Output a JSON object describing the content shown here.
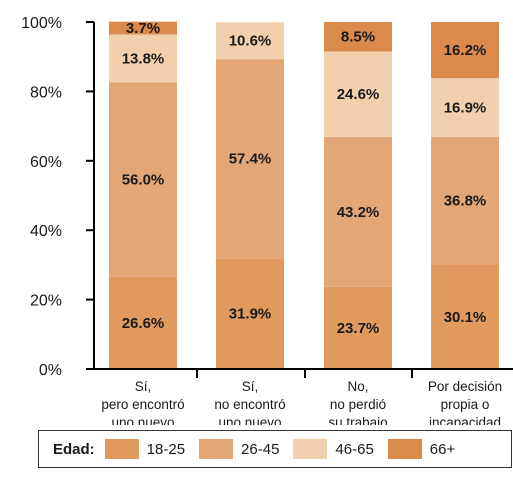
{
  "chart_data": {
    "type": "bar",
    "stacked": true,
    "categories": [
      [
        "Sí,",
        "pero encontró",
        "uno nuevo"
      ],
      [
        "Sí,",
        "no encontró",
        "uno nuevo"
      ],
      [
        "No,",
        "no perdió",
        "su trabajo"
      ],
      [
        "Por decisión",
        "propia o",
        "incapacidad"
      ]
    ],
    "series": [
      {
        "name": "18-25",
        "color": "#e09a5e",
        "values": [
          26.6,
          31.9,
          23.7,
          30.1
        ]
      },
      {
        "name": "26-45",
        "color": "#e3a676",
        "values": [
          56.0,
          57.4,
          43.2,
          36.8
        ]
      },
      {
        "name": "46-65",
        "color": "#f3d0ad",
        "values": [
          13.8,
          10.6,
          24.6,
          16.9
        ]
      },
      {
        "name": "66+",
        "color": "#db8a4c",
        "values": [
          3.7,
          0,
          8.5,
          16.2
        ]
      }
    ],
    "value_labels": [
      [
        "26.6%",
        "56.0%",
        "13.8%",
        "3.7%"
      ],
      [
        "31.9%",
        "57.4%",
        "10.6%",
        ""
      ],
      [
        "23.7%",
        "43.2%",
        "24.6%",
        "8.5%"
      ],
      [
        "30.1%",
        "36.8%",
        "16.9%",
        "16.2%"
      ]
    ],
    "y_ticks": [
      "0%",
      "20%",
      "40%",
      "60%",
      "80%",
      "100%"
    ],
    "ylim": [
      0,
      100
    ],
    "grid": false,
    "legend": {
      "title": "Edad:",
      "position": "bottom"
    }
  }
}
